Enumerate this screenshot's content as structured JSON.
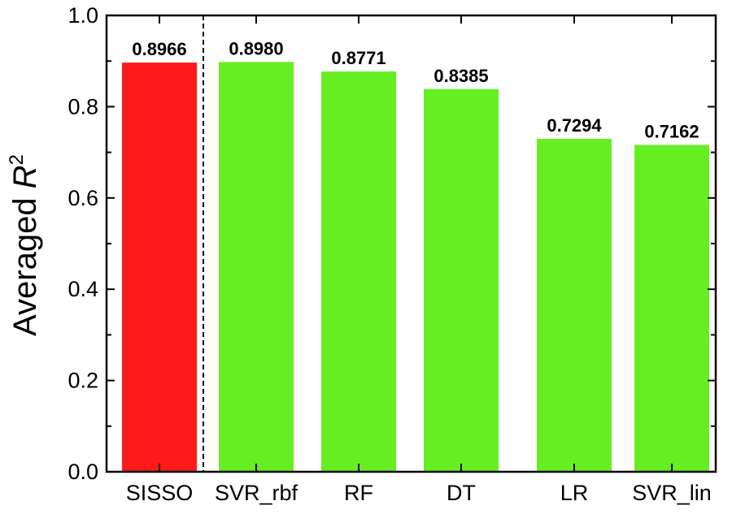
{
  "chart_data": {
    "type": "bar",
    "categories": [
      "SISSO",
      "SVR_rbf",
      "RF",
      "DT",
      "LR",
      "SVR_lin"
    ],
    "values": [
      0.8966,
      0.898,
      0.8771,
      0.8385,
      0.7294,
      0.7162
    ],
    "value_labels": [
      "0.8966",
      "0.8980",
      "0.8771",
      "0.8385",
      "0.7294",
      "0.7162"
    ],
    "ylabel_main": "Averaged ",
    "ylabel_var": "R",
    "ylabel_sup": "2",
    "ylim": [
      0,
      1.0
    ],
    "yticks": [
      "0.0",
      "0.2",
      "0.4",
      "0.6",
      "0.8",
      "1.0"
    ],
    "bar_colors": [
      "#ff1a1a",
      "#66ee22",
      "#66ee22",
      "#66ee22",
      "#66ee22",
      "#66ee22"
    ],
    "separator": "dashed vertical line between SISSO and SVR_rbf",
    "grid": false
  }
}
